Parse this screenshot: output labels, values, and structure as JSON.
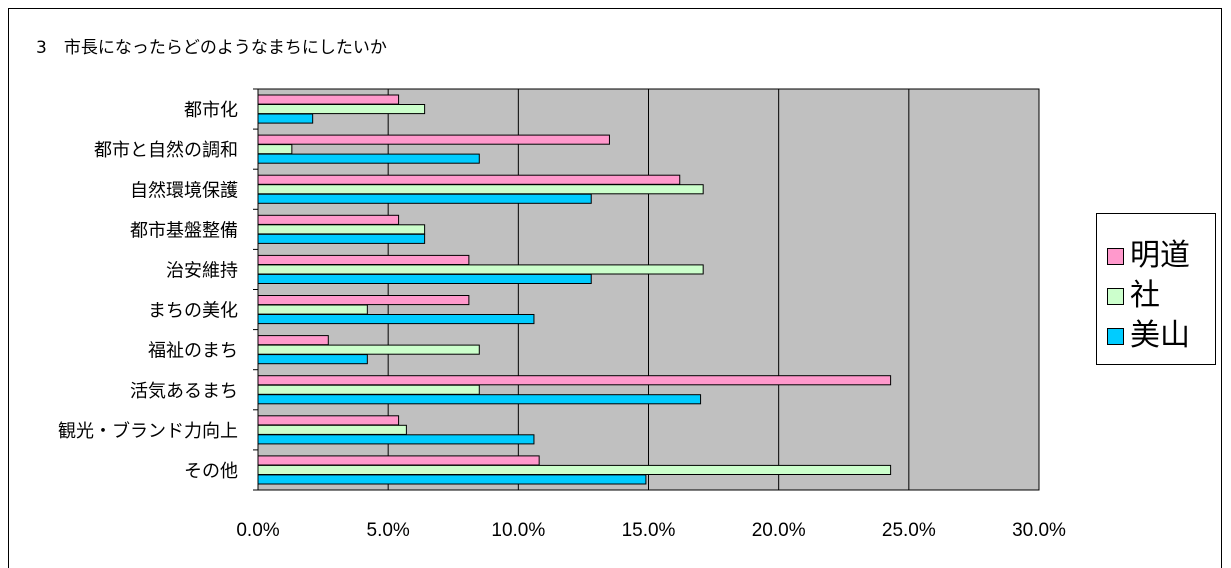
{
  "chart_data": {
    "type": "bar",
    "orientation": "horizontal",
    "title": "3　市長になったらどのようなまちにしたいか",
    "categories": [
      "都市化",
      "都市と自然の調和",
      "自然環境保護",
      "都市基盤整備",
      "治安維持",
      "まちの美化",
      "福祉のまち",
      "活気あるまち",
      "観光・ブランド力向上",
      "その他"
    ],
    "series": [
      {
        "name": "明道",
        "color": "#ff99cc",
        "values": [
          5.4,
          13.5,
          16.2,
          5.4,
          8.1,
          8.1,
          2.7,
          24.3,
          5.4,
          10.8
        ]
      },
      {
        "name": "社",
        "color": "#ccffcc",
        "values": [
          6.4,
          1.3,
          17.1,
          6.4,
          17.1,
          4.2,
          8.5,
          8.5,
          5.7,
          24.3
        ]
      },
      {
        "name": "美山",
        "color": "#00ccff",
        "values": [
          2.1,
          8.5,
          12.8,
          6.4,
          12.8,
          10.6,
          4.2,
          17.0,
          10.6,
          14.9
        ]
      }
    ],
    "x_ticks": [
      "0.0%",
      "5.0%",
      "10.0%",
      "15.0%",
      "20.0%",
      "25.0%",
      "30.0%"
    ],
    "xlim": [
      0,
      30
    ],
    "grid": true,
    "plot_background": "#c0c0c0",
    "legend_position": "right"
  }
}
